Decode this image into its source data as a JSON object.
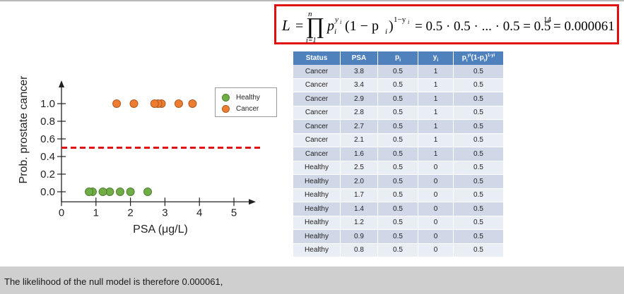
{
  "formula": {
    "lhs": "L",
    "equals": "=",
    "product_symbol": "∏",
    "product_upper": "n",
    "product_lower": "i=1",
    "term_p": "p",
    "term_p_sub": "i",
    "term_p_sup": "y",
    "term_p_sup_sub": "i",
    "term_paren": "(1 − p",
    "term_paren_sub": "i",
    "term_paren_close": ")",
    "term_exp": "1−y",
    "term_exp_sub": "i",
    "rhs_1": "= 0.5 · 0.5 · ... · 0.5 = 0.5",
    "rhs_exp": "14",
    "rhs_2": "= 0.000061"
  },
  "plot": {
    "ylabel": "Prob. prostate cancer",
    "xlabel": "PSA (μg/L)",
    "x_ticks": [
      "0",
      "1",
      "2",
      "3",
      "4",
      "5"
    ],
    "y_ticks": [
      "0.0",
      "0.2",
      "0.4",
      "0.6",
      "0.8",
      "1.0"
    ],
    "threshold": 0.5,
    "colors": {
      "healthy": "#70ad47",
      "cancer": "#ed7d31",
      "threshold_line": "#e01010"
    }
  },
  "chart_data": {
    "type": "scatter",
    "xlabel": "PSA (μg/L)",
    "ylabel": "Prob. prostate cancer",
    "xlim": [
      0,
      5.5
    ],
    "ylim": [
      -0.05,
      1.25
    ],
    "threshold_line": 0.5,
    "series": [
      {
        "name": "Healthy",
        "x": [
          2.5,
          2.0,
          1.7,
          1.4,
          1.2,
          0.9,
          0.8
        ],
        "y": [
          0,
          0,
          0,
          0,
          0,
          0,
          0
        ]
      },
      {
        "name": "Cancer",
        "x": [
          3.8,
          3.4,
          2.9,
          2.8,
          2.7,
          2.1,
          1.6
        ],
        "y": [
          1,
          1,
          1,
          1,
          1,
          1,
          1
        ]
      }
    ]
  },
  "legend": {
    "items": [
      {
        "label": "Healthy",
        "color": "#70ad47"
      },
      {
        "label": "Cancer",
        "color": "#ed7d31"
      }
    ]
  },
  "table": {
    "headers": [
      "Status",
      "PSA",
      "p",
      "y",
      "p(1-p)"
    ],
    "header_subs": [
      "",
      "",
      "i",
      "i",
      ""
    ],
    "last_header": {
      "p": "p",
      "p_sub": "i",
      "p_sup": "yi",
      "mid": "(1-p",
      "mid_sub": "i",
      "close": ")",
      "exp": "1-yi"
    },
    "rows": [
      [
        "Cancer",
        "3.8",
        "0.5",
        "1",
        "0.5"
      ],
      [
        "Cancer",
        "3.4",
        "0.5",
        "1",
        "0.5"
      ],
      [
        "Cancer",
        "2.9",
        "0.5",
        "1",
        "0.5"
      ],
      [
        "Cancer",
        "2.8",
        "0.5",
        "1",
        "0.5"
      ],
      [
        "Cancer",
        "2.7",
        "0.5",
        "1",
        "0.5"
      ],
      [
        "Cancer",
        "2.1",
        "0.5",
        "1",
        "0.5"
      ],
      [
        "Cancer",
        "1.6",
        "0.5",
        "1",
        "0.5"
      ],
      [
        "Healthy",
        "2.5",
        "0.5",
        "0",
        "0.5"
      ],
      [
        "Healthy",
        "2.0",
        "0.5",
        "0",
        "0.5"
      ],
      [
        "Healthy",
        "1.7",
        "0.5",
        "0",
        "0.5"
      ],
      [
        "Healthy",
        "1.4",
        "0.5",
        "0",
        "0.5"
      ],
      [
        "Healthy",
        "1.2",
        "0.5",
        "0",
        "0.5"
      ],
      [
        "Healthy",
        "0.9",
        "0.5",
        "0",
        "0.5"
      ],
      [
        "Healthy",
        "0.8",
        "0.5",
        "0",
        "0.5"
      ]
    ]
  },
  "caption": {
    "text": "The likelihood of the null model is therefore 0.000061,"
  }
}
